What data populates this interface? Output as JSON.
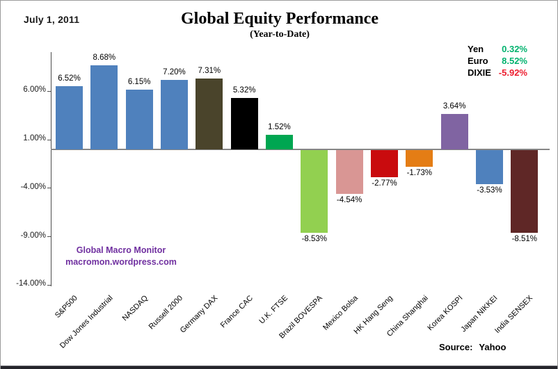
{
  "window": {
    "date": "July 1,  2011",
    "source_label": "Source:",
    "source_value": "Yahoo"
  },
  "header": {
    "title": "Global Equity Performance",
    "subtitle": "(Year-to-Date)"
  },
  "currency_panel": {
    "rows": [
      {
        "label": "Yen",
        "value": "0.32%",
        "color": "#00b26e"
      },
      {
        "label": "Euro",
        "value": "8.52%",
        "color": "#00b26e"
      },
      {
        "label": "DIXIE",
        "value": "-5.92%",
        "color": "#ec1c2e"
      }
    ]
  },
  "watermark": {
    "line1": "Global Macro Monitor",
    "line2": "macromon.wordpress.com",
    "color": "#7030a0"
  },
  "chart_data": {
    "type": "bar",
    "title": "Global Equity Performance",
    "subtitle": "(Year-to-Date)",
    "categories": [
      "S&P500",
      "Dow Jones Industrial",
      "NASDAQ",
      "Russell 2000",
      "Germany DAX",
      "France CAC",
      "U.K. FTSE",
      "Brazil BOVESPA",
      "Mexico Bolsa",
      "HK Hang Seng",
      "China Shanghai",
      "Korea KOSPI",
      "Japan NIKKEI",
      "India SENSEX"
    ],
    "values": [
      6.52,
      8.68,
      6.15,
      7.2,
      7.31,
      5.32,
      1.52,
      -8.53,
      -4.54,
      -2.77,
      -1.73,
      3.64,
      -3.53,
      -8.51
    ],
    "bar_labels": [
      "6.52%",
      "8.68%",
      "6.15%",
      "7.20%",
      "7.31%",
      "5.32%",
      "1.52%",
      "-8.53%",
      "-4.54%",
      "-2.77%",
      "-1.73%",
      "3.64%",
      "-3.53%",
      "-8.51%"
    ],
    "colors": [
      "#4f81bd",
      "#4f81bd",
      "#4f81bd",
      "#4f81bd",
      "#4a442b",
      "#000000",
      "#00a651",
      "#92d050",
      "#d99694",
      "#c90b0e",
      "#e47d15",
      "#8064a2",
      "#4f81bd",
      "#5f2726"
    ],
    "ylim": [
      -14,
      10
    ],
    "yticks": {
      "values": [
        6,
        1,
        -4,
        -9,
        -14
      ],
      "labels": [
        "6.00%",
        "1.00%",
        "-4.00%",
        "-9.00%",
        "-14.00%"
      ]
    },
    "grid": false,
    "legend_position": "top-right"
  }
}
